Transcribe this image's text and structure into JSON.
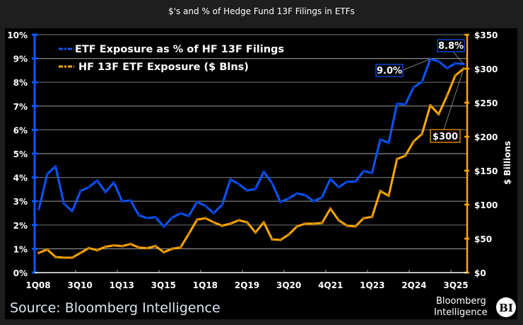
{
  "chart_data": {
    "type": "line",
    "title": "$'s and % of Hedge Fund 13F Filings in ETFs",
    "x_tick_labels": [
      "1Q08",
      "3Q10",
      "1Q13",
      "3Q15",
      "1Q18",
      "2Q19",
      "3Q20",
      "4Q21",
      "1Q23",
      "2Q24",
      "3Q25"
    ],
    "y_left": {
      "label": "",
      "ticks": [
        "0%",
        "1%",
        "2%",
        "3%",
        "4%",
        "5%",
        "6%",
        "7%",
        "8%",
        "9%",
        "10%"
      ],
      "range": [
        0,
        10
      ]
    },
    "y_right": {
      "label": "$ Billions",
      "ticks": [
        "$0",
        "$50",
        "$100",
        "$150",
        "$200",
        "$250",
        "$300",
        "$350"
      ],
      "range": [
        0,
        350
      ]
    },
    "grid": true,
    "legend_position": "top-left",
    "series": [
      {
        "name": "ETF Exposure as % of HF 13F Filings",
        "axis": "left",
        "color": "#0a55ff",
        "values": [
          2.67,
          4.14,
          4.47,
          2.9,
          2.58,
          3.43,
          3.59,
          3.87,
          3.38,
          3.79,
          3.0,
          3.03,
          2.41,
          2.29,
          2.33,
          1.93,
          2.31,
          2.49,
          2.38,
          2.98,
          2.8,
          2.5,
          2.85,
          3.92,
          3.72,
          3.45,
          3.52,
          4.24,
          3.76,
          2.97,
          3.12,
          3.33,
          3.25,
          3.0,
          3.17,
          3.94,
          3.59,
          3.82,
          3.82,
          4.27,
          4.19,
          5.6,
          5.45,
          7.1,
          7.07,
          7.79,
          8.02,
          8.98,
          8.88,
          8.59,
          8.8,
          8.76
        ]
      },
      {
        "name": "HF 13F ETF Exposure ($ Blns)",
        "axis": "right",
        "color": "#ffa800",
        "values": [
          29,
          34,
          23,
          22,
          22,
          29,
          36,
          33,
          38,
          40,
          39,
          42,
          37,
          36,
          39,
          30,
          35,
          37,
          57,
          78,
          80,
          74,
          69,
          72,
          77,
          74,
          59,
          74,
          49,
          48,
          56,
          68,
          72,
          72,
          73,
          94,
          77,
          69,
          68,
          80,
          82,
          120,
          113,
          167,
          172,
          193,
          204,
          246,
          233,
          260,
          290,
          300
        ]
      }
    ],
    "annotations": [
      {
        "text": "8.8%",
        "series": 0,
        "index": 51,
        "color": "#0a55ff"
      },
      {
        "text": "9.0%",
        "series": 0,
        "index": 47,
        "color": "#0a55ff"
      },
      {
        "text": "$300",
        "series": 1,
        "index": 51,
        "color": "#ffa800"
      }
    ]
  },
  "source": "Source: Bloomberg Intelligence",
  "logo": {
    "line1": "Bloomberg",
    "line2": "Intelligence",
    "badge": "BI"
  }
}
